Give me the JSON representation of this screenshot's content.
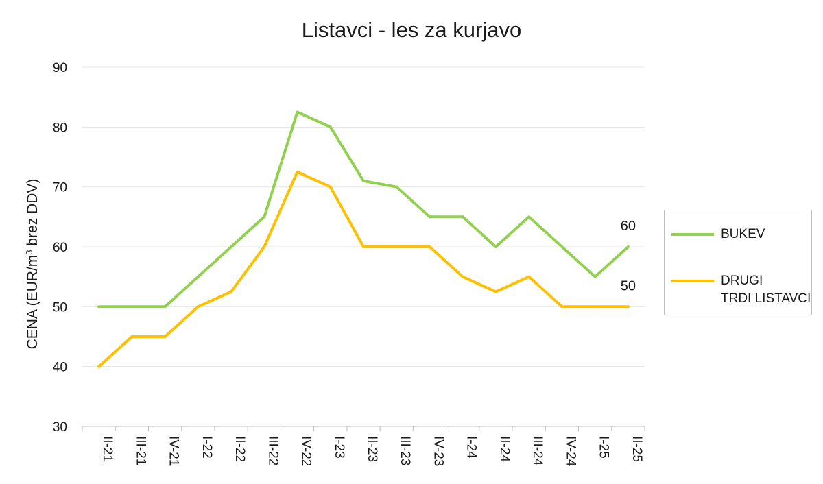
{
  "chart_data": {
    "type": "line",
    "title": "Listavci - les za kurjavo",
    "ylabel_main": "CENA (EUR/m",
    "ylabel_sup": "3",
    "ylabel_rest": " brez DDV)",
    "categories": [
      "II-21",
      "III-21",
      "IV-21",
      "I-22",
      "II-22",
      "III-22",
      "IV-22",
      "I-23",
      "II-23",
      "III-23",
      "IV-23",
      "I-24",
      "II-24",
      "III-24",
      "IV-24",
      "I-25",
      "II-25"
    ],
    "ylim": [
      30,
      90
    ],
    "yticks": [
      "30",
      "40",
      "50",
      "60",
      "70",
      "80",
      "90"
    ],
    "grid": true,
    "legend_position": "right",
    "series": [
      {
        "name": "BUKEV",
        "color": "#92d050",
        "values": [
          50,
          50,
          50,
          55,
          60,
          65,
          82.5,
          80,
          71,
          70,
          65,
          65,
          60,
          65,
          60,
          55,
          60
        ],
        "end_label": "60"
      },
      {
        "name": "DRUGI\nTRDI LISTAVCI",
        "color": "#ffc000",
        "values": [
          40,
          45,
          45,
          50,
          52.5,
          60,
          72.5,
          70,
          60,
          60,
          60,
          55,
          52.5,
          55,
          50,
          50,
          50
        ],
        "end_label": "50"
      }
    ]
  }
}
